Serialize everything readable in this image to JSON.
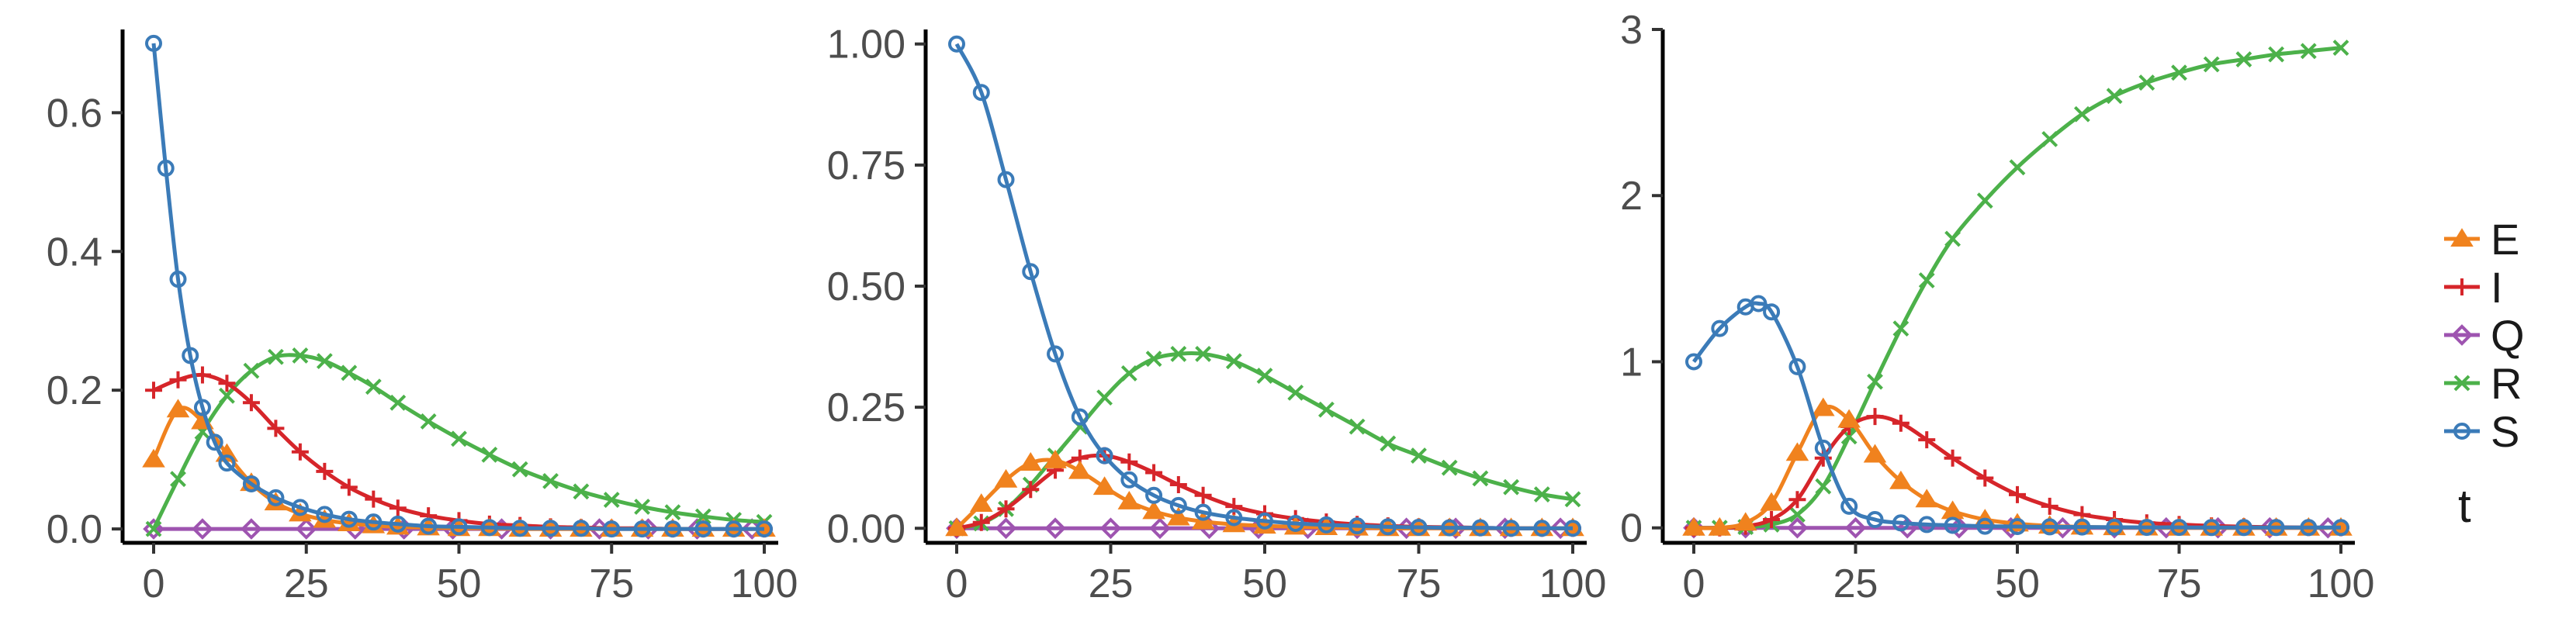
{
  "colors": {
    "E": "#f0821e",
    "I": "#d6252a",
    "Q": "#9e54b0",
    "R": "#4cb14a",
    "S": "#3b7bb8",
    "axis": "#000000",
    "tick_text": "#4d4d4d"
  },
  "markers": {
    "E": "triangle",
    "I": "plus",
    "Q": "diamond",
    "R": "cross",
    "S": "circle"
  },
  "legend": {
    "placement": "right",
    "title": "t",
    "entries": [
      {
        "key": "E",
        "label": "E"
      },
      {
        "key": "I",
        "label": "I"
      },
      {
        "key": "Q",
        "label": "Q"
      },
      {
        "key": "R",
        "label": "R"
      },
      {
        "key": "S",
        "label": "S"
      }
    ]
  },
  "chart_data": [
    {
      "type": "line",
      "xlim": [
        0,
        100
      ],
      "ylim": [
        -0.02,
        0.72
      ],
      "x_ticks": [
        0,
        25,
        50,
        75,
        100
      ],
      "x_tick_labels": [
        "0",
        "25",
        "50",
        "75",
        "100"
      ],
      "y_ticks": [
        0,
        0.2,
        0.4,
        0.6
      ],
      "y_tick_labels": [
        "0.0",
        "0.2",
        "0.4",
        "0.6"
      ],
      "grid": false,
      "series": [
        {
          "name": "Q",
          "x": [
            0,
            8,
            16,
            25,
            33,
            41,
            49,
            57,
            65,
            73,
            81,
            89,
            98
          ],
          "y": [
            0,
            0,
            0,
            0,
            0,
            0,
            0,
            0,
            0,
            0,
            0,
            0,
            0
          ]
        },
        {
          "name": "R",
          "x": [
            0,
            4,
            8,
            12,
            16,
            20,
            24,
            28,
            32,
            36,
            40,
            45,
            50,
            55,
            60,
            65,
            70,
            75,
            80,
            85,
            90,
            95,
            100
          ],
          "y": [
            0,
            0.072,
            0.14,
            0.192,
            0.228,
            0.248,
            0.25,
            0.242,
            0.225,
            0.205,
            0.182,
            0.155,
            0.13,
            0.107,
            0.086,
            0.069,
            0.054,
            0.042,
            0.032,
            0.024,
            0.018,
            0.013,
            0.01
          ]
        },
        {
          "name": "I",
          "x": [
            0,
            4,
            8,
            12,
            16,
            20,
            24,
            28,
            32,
            36,
            40,
            45,
            50,
            55,
            60,
            65,
            70,
            75,
            80,
            85,
            90,
            95,
            100
          ],
          "y": [
            0.2,
            0.215,
            0.222,
            0.21,
            0.182,
            0.145,
            0.111,
            0.083,
            0.06,
            0.043,
            0.03,
            0.019,
            0.012,
            0.007,
            0.005,
            0.003,
            0.002,
            0.001,
            0.001,
            0,
            0,
            0,
            0
          ]
        },
        {
          "name": "E",
          "x": [
            0,
            4,
            8,
            12,
            16,
            20,
            24,
            28,
            32,
            36,
            40,
            45,
            50,
            55,
            60,
            65,
            70,
            75,
            80,
            85,
            90,
            95,
            100
          ],
          "y": [
            0.1,
            0.172,
            0.155,
            0.108,
            0.066,
            0.038,
            0.022,
            0.013,
            0.008,
            0.005,
            0.003,
            0.002,
            0.001,
            0.001,
            0,
            0,
            0,
            0,
            0,
            0,
            0,
            0,
            0
          ]
        },
        {
          "name": "S",
          "x": [
            0,
            2,
            4,
            6,
            8,
            10,
            12,
            16,
            20,
            24,
            28,
            32,
            36,
            40,
            45,
            50,
            55,
            60,
            65,
            70,
            75,
            80,
            85,
            90,
            95,
            100
          ],
          "y": [
            0.7,
            0.52,
            0.36,
            0.25,
            0.175,
            0.125,
            0.095,
            0.065,
            0.045,
            0.031,
            0.021,
            0.014,
            0.01,
            0.007,
            0.004,
            0.003,
            0.002,
            0.001,
            0.001,
            0.001,
            0,
            0,
            0,
            0,
            0,
            0
          ]
        }
      ]
    },
    {
      "type": "line",
      "xlim": [
        0,
        100
      ],
      "ylim": [
        -0.03,
        1.03
      ],
      "x_ticks": [
        0,
        25,
        50,
        75,
        100
      ],
      "x_tick_labels": [
        "0",
        "25",
        "50",
        "75",
        "100"
      ],
      "y_ticks": [
        0,
        0.25,
        0.5,
        0.75,
        1.0
      ],
      "y_tick_labels": [
        "0.00",
        "0.25",
        "0.50",
        "0.75",
        "1.00"
      ],
      "grid": false,
      "series": [
        {
          "name": "Q",
          "x": [
            0,
            8,
            16,
            25,
            33,
            41,
            49,
            57,
            65,
            73,
            81,
            89,
            98
          ],
          "y": [
            0,
            0,
            0,
            0,
            0,
            0,
            0,
            0,
            0,
            0,
            0,
            0,
            0
          ]
        },
        {
          "name": "R",
          "x": [
            0,
            4,
            8,
            12,
            16,
            20,
            24,
            28,
            32,
            36,
            40,
            45,
            50,
            55,
            60,
            65,
            70,
            75,
            80,
            85,
            90,
            95,
            100
          ],
          "y": [
            0,
            0.01,
            0.04,
            0.09,
            0.15,
            0.21,
            0.27,
            0.32,
            0.35,
            0.36,
            0.36,
            0.345,
            0.315,
            0.28,
            0.245,
            0.21,
            0.175,
            0.15,
            0.125,
            0.103,
            0.085,
            0.07,
            0.06
          ]
        },
        {
          "name": "I",
          "x": [
            0,
            4,
            8,
            12,
            16,
            20,
            24,
            28,
            32,
            36,
            40,
            45,
            50,
            55,
            60,
            65,
            70,
            75,
            80,
            85,
            90,
            95,
            100
          ],
          "y": [
            0,
            0.012,
            0.04,
            0.08,
            0.12,
            0.145,
            0.15,
            0.137,
            0.115,
            0.09,
            0.068,
            0.045,
            0.03,
            0.02,
            0.013,
            0.008,
            0.005,
            0.003,
            0.002,
            0.001,
            0,
            0,
            0
          ]
        },
        {
          "name": "E",
          "x": [
            0,
            4,
            8,
            12,
            16,
            20,
            24,
            28,
            32,
            36,
            40,
            45,
            50,
            55,
            60,
            65,
            70,
            75,
            80,
            85,
            90,
            95,
            100
          ],
          "y": [
            0,
            0.05,
            0.1,
            0.135,
            0.14,
            0.118,
            0.085,
            0.055,
            0.035,
            0.022,
            0.014,
            0.008,
            0.005,
            0.003,
            0.002,
            0.001,
            0,
            0,
            0,
            0,
            0,
            0,
            0
          ]
        },
        {
          "name": "S",
          "x": [
            0,
            4,
            8,
            12,
            16,
            20,
            24,
            28,
            32,
            36,
            40,
            45,
            50,
            55,
            60,
            65,
            70,
            75,
            80,
            85,
            90,
            95,
            100
          ],
          "y": [
            1.0,
            0.9,
            0.72,
            0.53,
            0.36,
            0.23,
            0.15,
            0.1,
            0.068,
            0.047,
            0.033,
            0.022,
            0.015,
            0.01,
            0.007,
            0.005,
            0.003,
            0.002,
            0.001,
            0.001,
            0,
            0,
            0
          ]
        }
      ]
    },
    {
      "type": "line",
      "xlim": [
        0,
        100
      ],
      "ylim": [
        -0.09,
        3.0
      ],
      "x_ticks": [
        0,
        25,
        50,
        75,
        100
      ],
      "x_tick_labels": [
        "0",
        "25",
        "50",
        "75",
        "100"
      ],
      "y_ticks": [
        0,
        1,
        2,
        3
      ],
      "y_tick_labels": [
        "0",
        "1",
        "2",
        "3"
      ],
      "grid": false,
      "series": [
        {
          "name": "Q",
          "x": [
            0,
            8,
            16,
            25,
            33,
            41,
            49,
            57,
            65,
            73,
            81,
            89,
            98
          ],
          "y": [
            0,
            0,
            0,
            0,
            0,
            0,
            0,
            0,
            0,
            0,
            0,
            0,
            0
          ]
        },
        {
          "name": "R",
          "x": [
            0,
            4,
            8,
            12,
            16,
            20,
            24,
            28,
            32,
            36,
            40,
            45,
            50,
            55,
            60,
            65,
            70,
            75,
            80,
            85,
            90,
            95,
            100
          ],
          "y": [
            0,
            0,
            0.005,
            0.02,
            0.08,
            0.25,
            0.55,
            0.88,
            1.2,
            1.49,
            1.74,
            1.97,
            2.17,
            2.34,
            2.49,
            2.6,
            2.68,
            2.74,
            2.79,
            2.82,
            2.85,
            2.87,
            2.89
          ]
        },
        {
          "name": "I",
          "x": [
            0,
            4,
            8,
            12,
            16,
            20,
            24,
            28,
            32,
            36,
            40,
            45,
            50,
            55,
            60,
            65,
            70,
            75,
            80,
            85,
            90,
            95,
            100
          ],
          "y": [
            0,
            0,
            0.01,
            0.05,
            0.17,
            0.42,
            0.61,
            0.67,
            0.63,
            0.53,
            0.42,
            0.3,
            0.2,
            0.13,
            0.08,
            0.05,
            0.03,
            0.02,
            0.012,
            0.007,
            0.004,
            0.002,
            0.001
          ]
        },
        {
          "name": "E",
          "x": [
            0,
            4,
            8,
            12,
            16,
            20,
            24,
            28,
            32,
            36,
            40,
            45,
            50,
            55,
            60,
            65,
            70,
            75,
            80,
            85,
            90,
            95,
            100
          ],
          "y": [
            0,
            0,
            0.03,
            0.15,
            0.45,
            0.72,
            0.65,
            0.44,
            0.28,
            0.17,
            0.1,
            0.05,
            0.025,
            0.012,
            0.006,
            0.003,
            0.001,
            0,
            0,
            0,
            0,
            0,
            0
          ]
        },
        {
          "name": "S",
          "x": [
            0,
            4,
            8,
            10,
            12,
            16,
            20,
            24,
            28,
            32,
            36,
            40,
            45,
            50,
            55,
            60,
            65,
            70,
            75,
            80,
            85,
            90,
            95,
            100
          ],
          "y": [
            1.0,
            1.2,
            1.33,
            1.35,
            1.3,
            0.97,
            0.48,
            0.13,
            0.05,
            0.03,
            0.02,
            0.015,
            0.01,
            0.008,
            0.006,
            0.005,
            0.004,
            0.003,
            0.003,
            0.002,
            0.002,
            0.002,
            0.002,
            0.002
          ]
        }
      ]
    }
  ]
}
